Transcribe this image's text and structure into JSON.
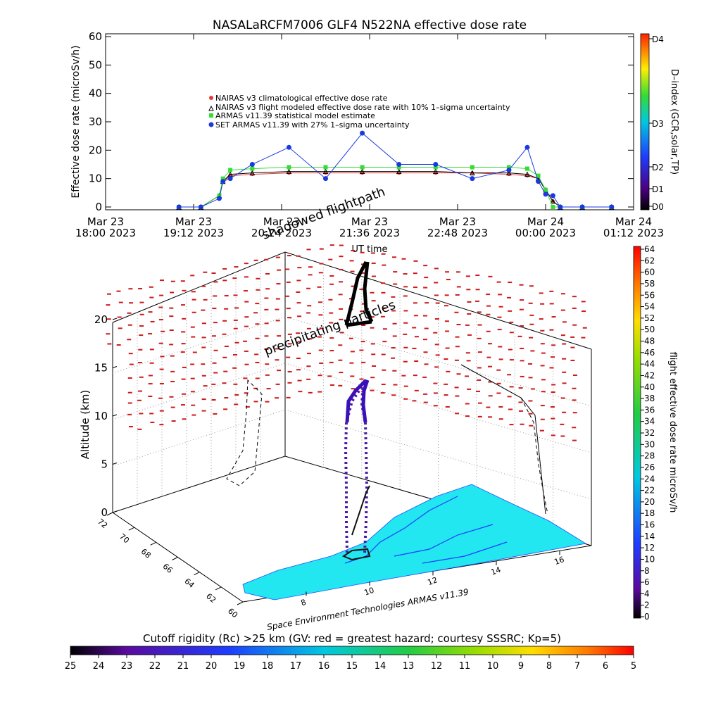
{
  "top_chart": {
    "title": "NASALaRCFM7006  GLF4 N522NA effective dose rate",
    "ylabel": "Effective dose rate (microSv/h)",
    "xlabel": "UT time",
    "legend": [
      {
        "label": "NAIRAS v3 climatological effective dose rate",
        "color": "#e83a3a"
      },
      {
        "label": "NAIRAS v3 flight modeled effective dose rate with 10% 1–sigma uncertainty",
        "color": "#000000"
      },
      {
        "label": "ARMAS v11.39 statistical model estimate",
        "color": "#33dd33"
      },
      {
        "label": "SET ARMAS v11.39 with 27% 1–sigma uncertainty",
        "color": "#1a3ae0"
      }
    ],
    "right_axis_label": "D–index (GCR,solar,TP)",
    "right_ticks": [
      "D4",
      "D3",
      "D2",
      "D1",
      "D0"
    ],
    "yticks": [
      "0",
      "10",
      "20",
      "30",
      "40",
      "50",
      "60"
    ],
    "xticks": [
      {
        "line1": "Mar 23",
        "line2": "18:00 2023"
      },
      {
        "line1": "Mar 23",
        "line2": "19:12 2023"
      },
      {
        "line1": "Mar 23",
        "line2": "20:24 2023"
      },
      {
        "line1": "Mar 23",
        "line2": "21:36 2023"
      },
      {
        "line1": "Mar 23",
        "line2": "22:48 2023"
      },
      {
        "line1": "Mar 24",
        "line2": "00:00 2023"
      },
      {
        "line1": "Mar 24",
        "line2": "01:12 2023"
      }
    ]
  },
  "scene": {
    "altitude_label": "Altitude (km)",
    "altitude_ticks": [
      "0",
      "5",
      "10",
      "15",
      "20"
    ],
    "lat_ticks": [
      "72",
      "70",
      "68",
      "66",
      "64",
      "62",
      "60"
    ],
    "lon_ticks": [
      "8",
      "10",
      "12",
      "14",
      "16"
    ],
    "label_shadowed": "shadowed flightpath",
    "label_precip": "precipitating particles",
    "credit": "Space Environment Technologies ARMAS v11.39",
    "right_colorbar_label": "flight effective dose rate microSv/h",
    "right_colorbar_ticks": [
      "64",
      "62",
      "60",
      "58",
      "56",
      "54",
      "52",
      "50",
      "48",
      "46",
      "44",
      "42",
      "40",
      "38",
      "36",
      "34",
      "32",
      "30",
      "28",
      "26",
      "24",
      "22",
      "20",
      "18",
      "16",
      "14",
      "12",
      "10",
      "8",
      "6",
      "4",
      "2",
      "0"
    ]
  },
  "bottom_colorbar": {
    "title": "Cutoff rigidity (Rc) >25 km (GV: red = greatest hazard; courtesy SSSRC; Kp=5)",
    "ticks": [
      "25",
      "24",
      "23",
      "22",
      "21",
      "20",
      "19",
      "18",
      "17",
      "16",
      "15",
      "14",
      "13",
      "12",
      "11",
      "10",
      "9",
      "8",
      "7",
      "6",
      "5"
    ]
  },
  "chart_data": {
    "type": "line",
    "title": "NASALaRCFM7006  GLF4 N522NA effective dose rate",
    "xlabel": "UT time",
    "ylabel": "Effective dose rate (microSv/h)",
    "ylim": [
      0,
      60
    ],
    "x_hours_range": [
      18.0,
      25.2
    ],
    "grid": false,
    "legend_position": "top-left",
    "x_hours": [
      19.0,
      19.3,
      19.55,
      19.6,
      19.7,
      20.0,
      20.5,
      21.0,
      21.5,
      22.0,
      22.5,
      23.0,
      23.5,
      23.75,
      23.9,
      24.0,
      24.1,
      24.2,
      24.5,
      24.9
    ],
    "series": [
      {
        "name": "NAIRAS v3 climatological effective dose rate",
        "color": "#e83a3a",
        "values": [
          0,
          0,
          4,
          9,
          11,
          11.5,
          12,
          12,
          12,
          12,
          12,
          12,
          11.5,
          11,
          10,
          6,
          2,
          0,
          0,
          0
        ]
      },
      {
        "name": "NAIRAS v3 flight modeled effective dose rate with 10% 1–sigma uncertainty",
        "color": "#000000",
        "values": [
          0,
          0,
          4,
          9,
          11.5,
          12,
          12.5,
          12.5,
          12.5,
          12.5,
          12.5,
          12,
          12,
          11.5,
          10,
          6,
          2,
          0,
          0,
          0
        ]
      },
      {
        "name": "ARMAS v11.39 statistical model estimate",
        "color": "#33dd33",
        "values": [
          0,
          0,
          4,
          10,
          13,
          13.5,
          14,
          14,
          14,
          14,
          14,
          14,
          14,
          13.5,
          11,
          6,
          0,
          0,
          0,
          0
        ]
      },
      {
        "name": "SET ARMAS v11.39 with 27% 1–sigma uncertainty",
        "color": "#1a3ae0",
        "values": [
          0,
          0,
          3,
          9,
          10,
          15,
          21,
          10,
          26,
          15,
          15,
          10,
          13,
          21,
          9,
          4.5,
          4,
          0,
          0,
          0
        ]
      }
    ]
  }
}
